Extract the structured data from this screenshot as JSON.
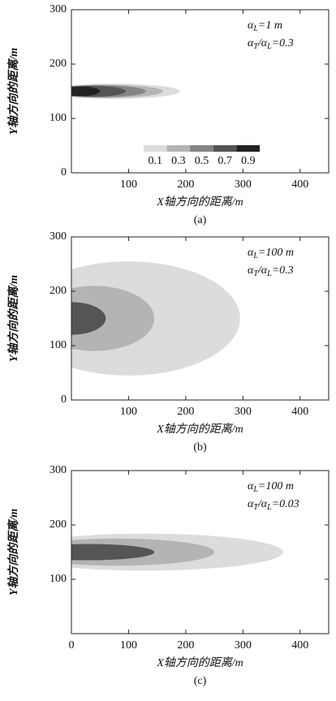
{
  "chart_data": [
    {
      "type": "contour",
      "xlabel": "X轴方向的距离/m",
      "ylabel": "Y轴方向的距离/m",
      "caption": "(a)",
      "annotations": [
        [
          "α",
          "L",
          "=1 m"
        ],
        [
          "α",
          "T",
          "/α",
          "L",
          "=0.3"
        ]
      ],
      "xlim": [
        0,
        450
      ],
      "ylim": [
        0,
        300
      ],
      "xticks": [
        100,
        200,
        300,
        400
      ],
      "yticks": [
        0,
        100,
        200,
        300
      ],
      "colorbar": {
        "levels": [
          0.1,
          0.3,
          0.5,
          0.7,
          0.9
        ],
        "colors": [
          "#dcdcdc",
          "#b4b4b4",
          "#858585",
          "#555555",
          "#222222"
        ]
      },
      "contours": [
        {
          "level": 0.1,
          "cx": 70,
          "cy": 150,
          "rx": 120,
          "ry": 14
        },
        {
          "level": 0.3,
          "cx": 60,
          "cy": 150,
          "rx": 100,
          "ry": 12
        },
        {
          "level": 0.5,
          "cx": 50,
          "cy": 150,
          "rx": 80,
          "ry": 11
        },
        {
          "level": 0.7,
          "cx": 35,
          "cy": 150,
          "rx": 60,
          "ry": 10
        },
        {
          "level": 0.9,
          "cx": 15,
          "cy": 150,
          "rx": 35,
          "ry": 9
        }
      ]
    },
    {
      "type": "contour",
      "xlabel": "X轴方向的距离/m",
      "ylabel": "Y轴方向的距离/m",
      "caption": "(b)",
      "annotations": [
        [
          "α",
          "L",
          "=100 m"
        ],
        [
          "α",
          "T",
          "/α",
          "L",
          "=0.3"
        ]
      ],
      "xlim": [
        0,
        450
      ],
      "ylim": [
        0,
        300
      ],
      "xticks": [
        100,
        200,
        300,
        400
      ],
      "yticks": [
        0,
        100,
        200,
        300
      ],
      "contours": [
        {
          "level": 0.1,
          "cx": 100,
          "cy": 150,
          "rx": 195,
          "ry": 105
        },
        {
          "level": 0.3,
          "cx": 40,
          "cy": 150,
          "rx": 105,
          "ry": 60
        },
        {
          "level": 0.7,
          "cx": 0,
          "cy": 150,
          "rx": 60,
          "ry": 30
        }
      ]
    },
    {
      "type": "contour",
      "xlabel": "X轴方向的距离/m",
      "ylabel": "Y轴方向的距离/m",
      "caption": "(c)",
      "annotations": [
        [
          "α",
          "L",
          "=100 m"
        ],
        [
          "α",
          "T",
          "/α",
          "L",
          "=0.03"
        ]
      ],
      "xlim": [
        0,
        450
      ],
      "ylim": [
        0,
        300
      ],
      "xticks": [
        0,
        100,
        200,
        300,
        400
      ],
      "yticks": [
        100,
        200,
        300
      ],
      "contours": [
        {
          "level": 0.1,
          "cx": 130,
          "cy": 150,
          "rx": 240,
          "ry": 34
        },
        {
          "level": 0.3,
          "cx": 80,
          "cy": 150,
          "rx": 170,
          "ry": 25
        },
        {
          "level": 0.7,
          "cx": 30,
          "cy": 150,
          "rx": 115,
          "ry": 15
        }
      ]
    }
  ]
}
